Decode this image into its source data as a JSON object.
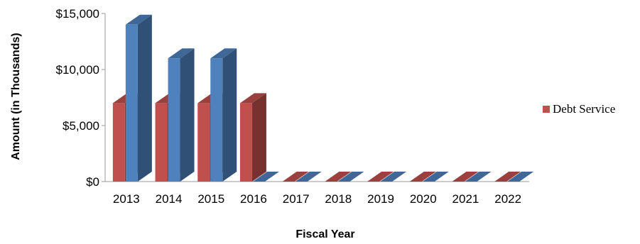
{
  "chart_data": {
    "type": "bar",
    "categories": [
      "2013",
      "2014",
      "2015",
      "2016",
      "2017",
      "2018",
      "2019",
      "2020",
      "2021",
      "2022"
    ],
    "series": [
      {
        "name": "Debt Service",
        "values": [
          7000,
          7000,
          7000,
          7000,
          0,
          0,
          0,
          0,
          0,
          0
        ],
        "color": "#C0504D"
      },
      {
        "name": "",
        "values": [
          14000,
          11000,
          11000,
          0,
          0,
          0,
          0,
          0,
          0,
          0
        ],
        "color": "#4F81BD"
      }
    ],
    "y_ticks": [
      "$0",
      "$5,000",
      "$10,000",
      "$15,000"
    ],
    "ylim": [
      0,
      15000
    ],
    "xlabel": "Fiscal Year",
    "ylabel": "Amount  (in Thousands)",
    "legend": {
      "position": "right",
      "entries": [
        "Debt Service"
      ]
    },
    "grid": false,
    "three_d": true
  }
}
